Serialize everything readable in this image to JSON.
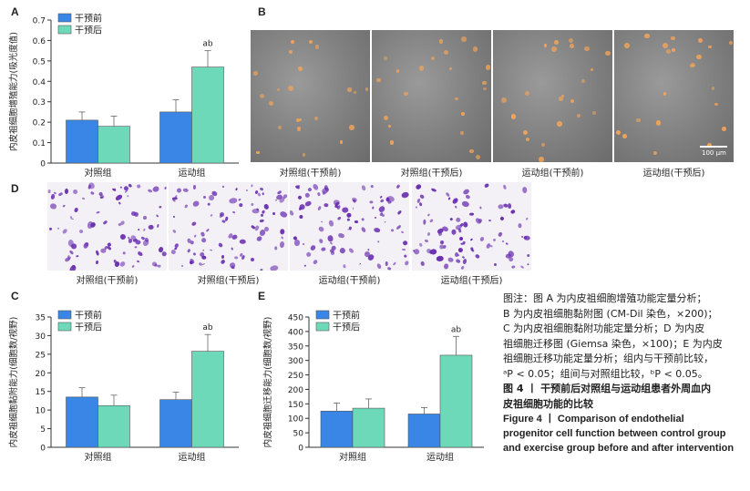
{
  "figure": {
    "panels": {
      "A": "A",
      "B": "B",
      "C": "C",
      "D": "D",
      "E": "E"
    },
    "scale_bar": "100 μm",
    "b_captions": [
      "对照组(干预前)",
      "对照组(干预后)",
      "运动组(干预前)",
      "运动组(干预后)"
    ],
    "d_captions": [
      "对照组(干预前)",
      "对照组(干预后)",
      "运动组(干预前)",
      "运动组(干预后)"
    ]
  },
  "chart_data": [
    {
      "type": "bar",
      "panel": "A",
      "categories": [
        "对照组",
        "运动组"
      ],
      "series": [
        {
          "name": "干预前",
          "values": [
            0.21,
            0.25
          ],
          "errors": [
            0.04,
            0.06
          ]
        },
        {
          "name": "干预后",
          "values": [
            0.18,
            0.47
          ],
          "errors": [
            0.05,
            0.08
          ]
        }
      ],
      "annotations": [
        {
          "category": "运动组",
          "series": "干预后",
          "text": "ab"
        }
      ],
      "ylabel": "内皮祖细胞增殖能力(吸光度值)",
      "ylim": [
        0,
        0.7
      ],
      "yticks": [
        "0",
        "0.1",
        "0.2",
        "0.3",
        "0.4",
        "0.5",
        "0.6",
        "0.7"
      ],
      "colors": [
        "#3a86e6",
        "#6ed9b8"
      ],
      "legend": "top-left"
    },
    {
      "type": "bar",
      "panel": "C",
      "categories": [
        "对照组",
        "运动组"
      ],
      "series": [
        {
          "name": "干预前",
          "values": [
            13.5,
            12.8
          ],
          "errors": [
            2.5,
            2.0
          ]
        },
        {
          "name": "干预后",
          "values": [
            11.2,
            25.8
          ],
          "errors": [
            2.8,
            4.5
          ]
        }
      ],
      "annotations": [
        {
          "category": "运动组",
          "series": "干预后",
          "text": "ab"
        }
      ],
      "ylabel": "内皮祖细胞黏附能力(细胞数/视野)",
      "ylim": [
        0,
        35
      ],
      "yticks": [
        "0",
        "5",
        "10",
        "15",
        "20",
        "25",
        "30",
        "35"
      ],
      "colors": [
        "#3a86e6",
        "#6ed9b8"
      ],
      "legend": "top-left"
    },
    {
      "type": "bar",
      "panel": "E",
      "categories": [
        "对照组",
        "运动组"
      ],
      "series": [
        {
          "name": "干预前",
          "values": [
            125,
            115
          ],
          "errors": [
            28,
            22
          ]
        },
        {
          "name": "干预后",
          "values": [
            135,
            318
          ],
          "errors": [
            32,
            65
          ]
        }
      ],
      "annotations": [
        {
          "category": "运动组",
          "series": "干预后",
          "text": "ab"
        }
      ],
      "ylabel": "内皮祖细胞迁移能力(细胞数/视野)",
      "ylim": [
        0,
        450
      ],
      "yticks": [
        "0",
        "50",
        "100",
        "150",
        "200",
        "250",
        "300",
        "350",
        "400",
        "450"
      ],
      "colors": [
        "#3a86e6",
        "#6ed9b8"
      ],
      "legend": "top-left"
    }
  ],
  "caption": {
    "note_lines": [
      "图注：图 A 为内皮祖细胞增殖功能定量分析；",
      "B 为内皮祖细胞黏附图 (CM-Dil 染色，×200)；",
      "C 为内皮祖细胞黏附功能定量分析；D 为内皮",
      "祖细胞迁移图 (Giemsa 染色，×100)；E 为内皮",
      "祖细胞迁移功能定量分析；组内与干预前比较，",
      "ᵃP < 0.05；组间与对照组比较，ᵇP < 0.05。"
    ],
    "title_cn_lines": [
      "图 4 丨 干预前后对照组与运动组患者外周血内",
      "皮祖细胞功能的比较"
    ],
    "title_en_lines": [
      "Figure 4 丨 Comparison of endothelial",
      "progenitor cell function between control group",
      "and exercise group before and after intervention"
    ]
  }
}
